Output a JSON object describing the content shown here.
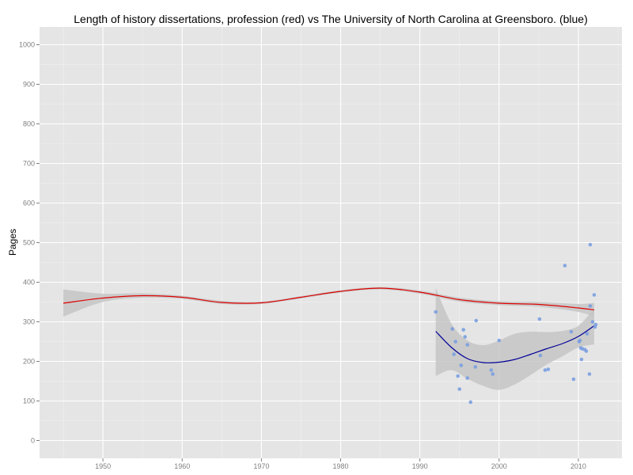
{
  "chart_data": {
    "type": "scatter",
    "title": "Length of history dissertations, profession (red) vs The University of North Carolina at Greensboro. (blue)",
    "xlabel": "",
    "ylabel": "Pages",
    "xlim": [
      1942,
      2015.5
    ],
    "ylim": [
      -45,
      1045
    ],
    "x_ticks": [
      1950,
      1960,
      1970,
      1980,
      1990,
      2000,
      2010
    ],
    "y_ticks": [
      0,
      100,
      200,
      300,
      400,
      500,
      600,
      700,
      800,
      900,
      1000
    ],
    "grid": true,
    "colors": {
      "panel": "#e5e5e5",
      "grid_major": "#ffffff",
      "grid_minor": "#f2f2f2",
      "band": "#c6c6c6",
      "profession_line": "#dd0000",
      "unc_line": "#000099",
      "points": "#7a9fe0"
    },
    "series": [
      {
        "color": "red",
        "style": "smooth-line-with-band",
        "x": [
          1945,
          1950,
          1955,
          1960,
          1965,
          1970,
          1975,
          1980,
          1985,
          1990,
          1995,
          2000,
          2005,
          2010,
          2012
        ],
        "y": [
          347,
          360,
          366,
          362,
          349,
          348,
          362,
          377,
          385,
          375,
          356,
          347,
          344,
          335,
          330
        ],
        "lower": [
          313,
          350,
          361,
          358,
          345,
          345,
          359,
          374,
          382,
          371,
          351,
          342,
          338,
          325,
          312
        ],
        "upper": [
          382,
          371,
          372,
          366,
          353,
          351,
          365,
          380,
          388,
          379,
          361,
          352,
          350,
          345,
          348
        ]
      },
      {
        "color": "blue",
        "style": "smooth-line-with-band",
        "x": [
          1992,
          1994,
          1996,
          1998,
          2000,
          2002,
          2004,
          2006,
          2008,
          2010,
          2012
        ],
        "y": [
          276,
          235,
          207,
          197,
          198,
          205,
          218,
          232,
          245,
          263,
          290
        ],
        "lower": [
          163,
          178,
          156,
          138,
          128,
          142,
          166,
          192,
          213,
          235,
          243
        ],
        "upper": [
          385,
          295,
          253,
          241,
          253,
          270,
          275,
          274,
          277,
          290,
          334
        ]
      },
      {
        "color": "blue",
        "style": "points",
        "points": [
          [
            1992,
            325
          ],
          [
            1994.1,
            282
          ],
          [
            1994.3,
            218
          ],
          [
            1994.5,
            250
          ],
          [
            1994.8,
            163
          ],
          [
            1995,
            130
          ],
          [
            1995.2,
            190
          ],
          [
            1995.5,
            280
          ],
          [
            1995.7,
            262
          ],
          [
            1996,
            242
          ],
          [
            1996,
            158
          ],
          [
            1996.4,
            97
          ],
          [
            1997,
            186
          ],
          [
            1997.1,
            303
          ],
          [
            1999,
            178
          ],
          [
            1999.2,
            168
          ],
          [
            2000,
            253
          ],
          [
            2005.1,
            307
          ],
          [
            2005.2,
            215
          ],
          [
            2005.8,
            178
          ],
          [
            2006.2,
            180
          ],
          [
            2008.3,
            442
          ],
          [
            2009.1,
            275
          ],
          [
            2009.4,
            155
          ],
          [
            2010.1,
            250
          ],
          [
            2010.2,
            253
          ],
          [
            2010.3,
            234
          ],
          [
            2010.5,
            232
          ],
          [
            2010.4,
            205
          ],
          [
            2010.8,
            230
          ],
          [
            2011,
            226
          ],
          [
            2011.1,
            270
          ],
          [
            2011.4,
            168
          ],
          [
            2011.5,
            495
          ],
          [
            2011.5,
            340
          ],
          [
            2011.8,
            300
          ],
          [
            2012,
            368
          ],
          [
            2012.1,
            287
          ],
          [
            2012.2,
            293
          ]
        ]
      }
    ]
  }
}
